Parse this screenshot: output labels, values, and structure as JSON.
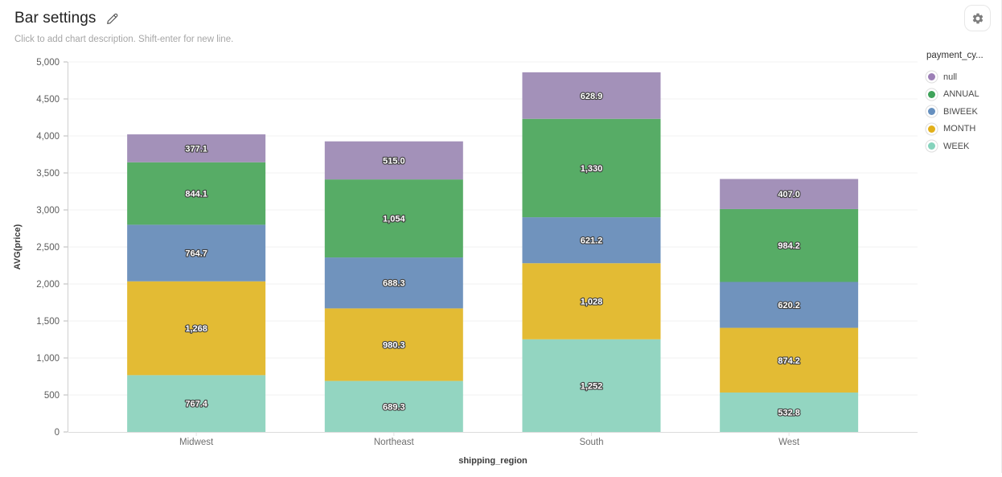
{
  "header": {
    "title": "Bar settings",
    "subtitle": "Click to add chart description. Shift-enter for new line."
  },
  "toolbar": {
    "settings_icon": "gear-icon",
    "edit_icon": "pencil-icon"
  },
  "chart_data": {
    "type": "bar",
    "stacked": true,
    "xlabel": "shipping_region",
    "ylabel": "AVG(price)",
    "ylim": [
      0,
      5000
    ],
    "ytick_step": 500,
    "ytick_labels": [
      "0",
      "500",
      "1,000",
      "1,500",
      "2,000",
      "2,500",
      "3,000",
      "3,500",
      "4,000",
      "4,500",
      "5,000"
    ],
    "categories": [
      "Midwest",
      "Northeast",
      "South",
      "West"
    ],
    "grid": true,
    "legend": {
      "title": "payment_cy...",
      "position": "right"
    },
    "series": [
      {
        "name": "null",
        "color": "#9c7fb6",
        "bar_color": "#a391b9",
        "values": [
          377.1,
          515.0,
          628.9,
          407.0
        ],
        "labels": [
          "377.1",
          "515.0",
          "628.9",
          "407.0"
        ]
      },
      {
        "name": "ANNUAL",
        "color": "#3fa35a",
        "bar_color": "#57ac66",
        "values": [
          844.1,
          1054,
          1330,
          984.2
        ],
        "labels": [
          "844.1",
          "1,054",
          "1,330",
          "984.2"
        ]
      },
      {
        "name": "BIWEEK",
        "color": "#6690bf",
        "bar_color": "#7093bd",
        "values": [
          764.7,
          688.3,
          621.2,
          620.2
        ],
        "labels": [
          "764.7",
          "688.3",
          "621.2",
          "620.2"
        ]
      },
      {
        "name": "MONTH",
        "color": "#e2b01a",
        "bar_color": "#e3bb34",
        "values": [
          1268,
          980.3,
          1028,
          874.2
        ],
        "labels": [
          "1,268",
          "980.3",
          "1,028",
          "874.2"
        ]
      },
      {
        "name": "WEEK",
        "color": "#85d3bc",
        "bar_color": "#93d5c1",
        "values": [
          767.4,
          689.3,
          1252,
          532.8
        ],
        "labels": [
          "767.4",
          "689.3",
          "1,252",
          "532.8"
        ]
      }
    ],
    "stack_order_bottom_to_top": [
      "WEEK",
      "MONTH",
      "BIWEEK",
      "ANNUAL",
      "null"
    ]
  }
}
